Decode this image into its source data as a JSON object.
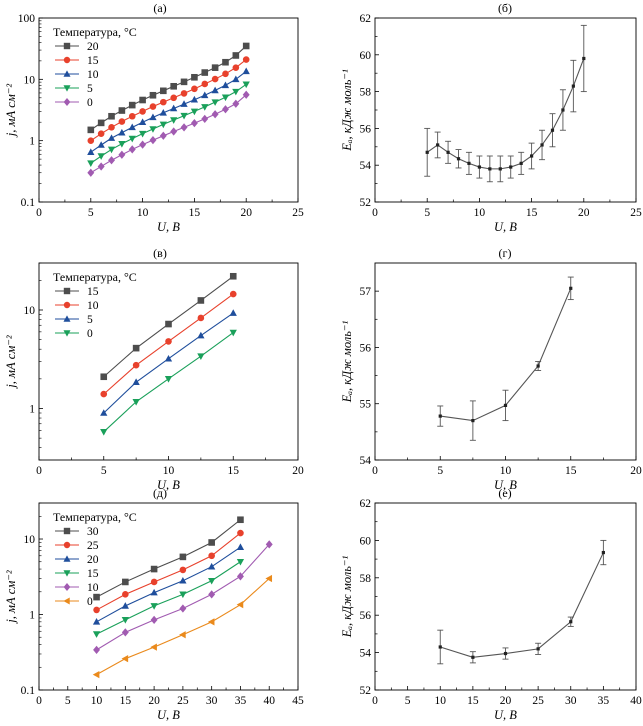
{
  "chart_data": [
    {
      "id": "a",
      "panel_label": "(а)",
      "type": "line",
      "yscale": "log",
      "xlim": [
        0,
        25
      ],
      "ylim": [
        0.1,
        100
      ],
      "xticks": [
        0,
        5,
        10,
        15,
        20,
        25
      ],
      "yticks": [
        0.1,
        1,
        10,
        100
      ],
      "ytick_labels": [
        "0.1",
        "1",
        "10",
        "100"
      ],
      "xlabel": "U, В",
      "ylabel": "j, мА см⁻²",
      "legend_title": "Температура, °C",
      "legend_position": "top-left",
      "x": [
        5,
        6,
        7,
        8,
        9,
        10,
        11,
        12,
        13,
        14,
        15,
        16,
        17,
        18,
        19,
        20
      ],
      "series": [
        {
          "name": "20",
          "color": "#4d4d4d",
          "marker": "square",
          "values": [
            1.5,
            1.95,
            2.5,
            3.1,
            3.8,
            4.6,
            5.5,
            6.5,
            7.7,
            9.1,
            10.8,
            12.9,
            15.5,
            19.0,
            24.5,
            35.0
          ]
        },
        {
          "name": "15",
          "color": "#e8412c",
          "marker": "circle",
          "values": [
            1.0,
            1.3,
            1.65,
            2.05,
            2.5,
            3.0,
            3.6,
            4.25,
            5.0,
            5.9,
            7.0,
            8.4,
            10.1,
            12.3,
            15.5,
            21.0
          ]
        },
        {
          "name": "10",
          "color": "#1f4e9c",
          "marker": "triangle-up",
          "values": [
            0.65,
            0.85,
            1.1,
            1.35,
            1.65,
            2.0,
            2.4,
            2.85,
            3.35,
            3.95,
            4.65,
            5.5,
            6.6,
            8.0,
            10.0,
            13.5
          ]
        },
        {
          "name": "5",
          "color": "#1aa05a",
          "marker": "triangle-down",
          "values": [
            0.43,
            0.56,
            0.72,
            0.89,
            1.08,
            1.3,
            1.55,
            1.84,
            2.17,
            2.55,
            3.0,
            3.55,
            4.25,
            5.1,
            6.3,
            8.3
          ]
        },
        {
          "name": "0",
          "color": "#a15bb1",
          "marker": "diamond",
          "values": [
            0.3,
            0.38,
            0.48,
            0.59,
            0.72,
            0.86,
            1.02,
            1.2,
            1.41,
            1.65,
            1.93,
            2.27,
            2.7,
            3.25,
            4.0,
            5.6
          ]
        }
      ]
    },
    {
      "id": "b",
      "panel_label": "(б)",
      "type": "line",
      "yscale": "linear",
      "xlim": [
        0,
        25
      ],
      "ylim": [
        52,
        62
      ],
      "xticks": [
        0,
        5,
        10,
        15,
        20,
        25
      ],
      "yticks": [
        52,
        54,
        56,
        58,
        60,
        62
      ],
      "xlabel": "U, В",
      "ylabel": "Eₐ, кДж моль⁻¹",
      "x": [
        5,
        6,
        7,
        8,
        9,
        10,
        11,
        12,
        13,
        14,
        15,
        16,
        17,
        18,
        19,
        20
      ],
      "series": [
        {
          "color": "#555555",
          "values": [
            54.7,
            55.1,
            54.7,
            54.35,
            54.1,
            53.9,
            53.8,
            53.8,
            53.9,
            54.1,
            54.5,
            55.1,
            55.9,
            57.0,
            58.3,
            59.8
          ],
          "errors": [
            1.3,
            0.7,
            0.6,
            0.5,
            0.6,
            0.6,
            0.7,
            0.7,
            0.6,
            0.6,
            0.7,
            0.8,
            0.9,
            1.1,
            1.4,
            1.8
          ]
        }
      ]
    },
    {
      "id": "c",
      "panel_label": "(в)",
      "type": "line",
      "yscale": "log",
      "xlim": [
        0,
        20
      ],
      "ylim": [
        0.3,
        30
      ],
      "xticks": [
        0,
        5,
        10,
        15,
        20
      ],
      "yticks": [
        1,
        10
      ],
      "ytick_labels": [
        "1",
        "10"
      ],
      "xlabel": "U, В",
      "ylabel": "j, мА см⁻²",
      "legend_title": "Температура, °C",
      "legend_position": "top-left",
      "x": [
        5,
        7.5,
        10,
        12.5,
        15
      ],
      "series": [
        {
          "name": "15",
          "color": "#4d4d4d",
          "marker": "square",
          "values": [
            2.1,
            4.1,
            7.2,
            12.5,
            22.0
          ]
        },
        {
          "name": "10",
          "color": "#e8412c",
          "marker": "circle",
          "values": [
            1.4,
            2.75,
            4.8,
            8.3,
            14.5
          ]
        },
        {
          "name": "5",
          "color": "#1f4e9c",
          "marker": "triangle-up",
          "values": [
            0.9,
            1.85,
            3.2,
            5.5,
            9.3
          ]
        },
        {
          "name": "0",
          "color": "#1aa05a",
          "marker": "triangle-down",
          "values": [
            0.58,
            1.17,
            2.0,
            3.4,
            5.9
          ]
        }
      ]
    },
    {
      "id": "d",
      "panel_label": "(г)",
      "type": "line",
      "yscale": "linear",
      "xlim": [
        0,
        20
      ],
      "ylim": [
        54,
        57.5
      ],
      "xticks": [
        0,
        5,
        10,
        15,
        20
      ],
      "yticks": [
        54,
        55,
        56,
        57
      ],
      "xlabel": "U, В",
      "ylabel": "Eₐ, кДж моль⁻¹",
      "x": [
        5,
        7.5,
        10,
        12.5,
        15
      ],
      "series": [
        {
          "color": "#555555",
          "values": [
            54.78,
            54.7,
            54.97,
            55.67,
            57.05
          ],
          "errors": [
            0.18,
            0.35,
            0.27,
            0.08,
            0.2
          ]
        }
      ]
    },
    {
      "id": "e",
      "panel_label": "(д)",
      "type": "line",
      "yscale": "log",
      "xlim": [
        0,
        45
      ],
      "ylim": [
        0.1,
        30
      ],
      "xticks": [
        0,
        5,
        10,
        15,
        20,
        25,
        30,
        35,
        40,
        45
      ],
      "yticks": [
        0.1,
        1,
        10
      ],
      "ytick_labels": [
        "0.1",
        "1",
        "10"
      ],
      "xlabel": "U, В",
      "ylabel": "j, мА см⁻²",
      "legend_title": "Температура, °C",
      "legend_position": "top-left",
      "series": [
        {
          "name": "30",
          "color": "#4d4d4d",
          "marker": "square",
          "x": [
            10,
            15,
            20,
            25,
            30,
            35
          ],
          "values": [
            1.7,
            2.7,
            4.0,
            5.8,
            9.0,
            18.0
          ]
        },
        {
          "name": "25",
          "color": "#e8412c",
          "marker": "circle",
          "x": [
            10,
            15,
            20,
            25,
            30,
            35
          ],
          "values": [
            1.15,
            1.85,
            2.7,
            3.9,
            6.0,
            12.0
          ]
        },
        {
          "name": "20",
          "color": "#1f4e9c",
          "marker": "triangle-up",
          "x": [
            10,
            15,
            20,
            25,
            30,
            35
          ],
          "values": [
            0.8,
            1.3,
            1.95,
            2.8,
            4.3,
            7.8
          ]
        },
        {
          "name": "15",
          "color": "#1aa05a",
          "marker": "triangle-down",
          "x": [
            10,
            15,
            20,
            25,
            30,
            35
          ],
          "values": [
            0.55,
            0.85,
            1.3,
            1.85,
            2.8,
            5.0
          ]
        },
        {
          "name": "10",
          "color": "#a15bb1",
          "marker": "diamond",
          "x": [
            10,
            15,
            20,
            25,
            30,
            35,
            40
          ],
          "values": [
            0.34,
            0.58,
            0.85,
            1.2,
            1.85,
            3.2,
            8.5
          ]
        },
        {
          "name": "0",
          "color": "#ea8a1c",
          "marker": "triangle-left",
          "x": [
            10,
            15,
            20,
            25,
            30,
            35,
            40
          ],
          "values": [
            0.16,
            0.26,
            0.37,
            0.54,
            0.8,
            1.35,
            3.0
          ]
        }
      ]
    },
    {
      "id": "f",
      "panel_label": "(е)",
      "type": "line",
      "yscale": "linear",
      "xlim": [
        0,
        40
      ],
      "ylim": [
        52,
        62
      ],
      "xticks": [
        0,
        5,
        10,
        15,
        20,
        25,
        30,
        35,
        40
      ],
      "yticks": [
        52,
        54,
        56,
        58,
        60,
        62
      ],
      "xlabel": "U, В",
      "ylabel": "Eₐ, кДж моль⁻¹",
      "x": [
        10,
        15,
        20,
        25,
        30,
        35
      ],
      "series": [
        {
          "color": "#555555",
          "values": [
            54.3,
            53.75,
            53.95,
            54.2,
            55.65,
            59.35
          ],
          "errors": [
            0.9,
            0.3,
            0.3,
            0.3,
            0.25,
            0.65
          ]
        }
      ]
    }
  ]
}
